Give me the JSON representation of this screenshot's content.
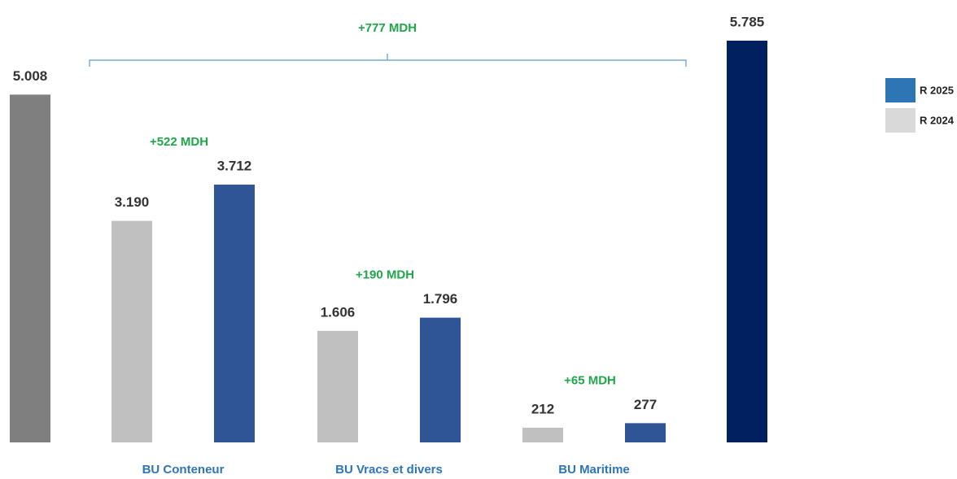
{
  "chart_data": {
    "type": "bar",
    "categories": [
      null,
      "BU Conteneur",
      "BU Vracs et divers",
      "BU Maritime",
      null
    ],
    "series": [
      {
        "name": "R 2025",
        "color": "#2e75b6",
        "bar_colors": [
          null,
          "#2f5597",
          "#2f5597",
          "#2f5597",
          "#002060"
        ],
        "values": [
          null,
          3712,
          1796,
          277,
          5785
        ],
        "value_labels": [
          null,
          "3.712",
          "1.796",
          "277",
          "5.785"
        ]
      },
      {
        "name": "R 2024",
        "color": "#d9d9d9",
        "bar_colors": [
          "#7f7f7f",
          "#c0c0c0",
          "#c0c0c0",
          "#c0c0c0",
          null
        ],
        "values": [
          5008,
          3190,
          1606,
          212,
          null
        ],
        "value_labels": [
          "5.008",
          "3.190",
          "1.606",
          "212",
          null
        ]
      }
    ],
    "annotations": [
      "+777 MDH",
      "+522 MDH",
      "+190 MDH",
      "+65 MDH"
    ],
    "legend": "right"
  }
}
